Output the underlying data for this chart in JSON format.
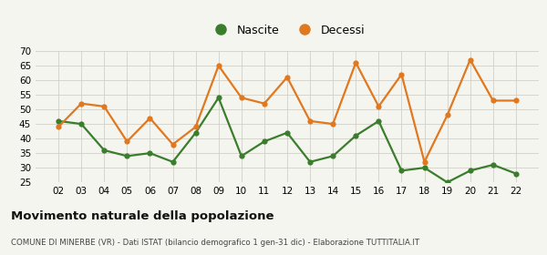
{
  "years": [
    "02",
    "03",
    "04",
    "05",
    "06",
    "07",
    "08",
    "09",
    "10",
    "11",
    "12",
    "13",
    "14",
    "15",
    "16",
    "17",
    "18",
    "19",
    "20",
    "21",
    "22"
  ],
  "nascite": [
    46,
    45,
    36,
    34,
    35,
    32,
    42,
    54,
    34,
    39,
    42,
    32,
    34,
    41,
    46,
    29,
    30,
    25,
    29,
    31,
    28
  ],
  "decessi": [
    44,
    52,
    51,
    39,
    47,
    38,
    44,
    65,
    54,
    52,
    61,
    46,
    45,
    66,
    51,
    62,
    32,
    48,
    67,
    53,
    53
  ],
  "nascite_color": "#3a7d2c",
  "decessi_color": "#e07820",
  "background_color": "#f5f5f0",
  "grid_color": "#d0d0c8",
  "ylim": [
    25,
    70
  ],
  "yticks": [
    25,
    30,
    35,
    40,
    45,
    50,
    55,
    60,
    65,
    70
  ],
  "title": "Movimento naturale della popolazione",
  "subtitle": "COMUNE DI MINERBE (VR) - Dati ISTAT (bilancio demografico 1 gen-31 dic) - Elaborazione TUTTITALIA.IT",
  "legend_nascite": "Nascite",
  "legend_decessi": "Decessi",
  "marker_size": 4.5,
  "line_width": 1.6
}
